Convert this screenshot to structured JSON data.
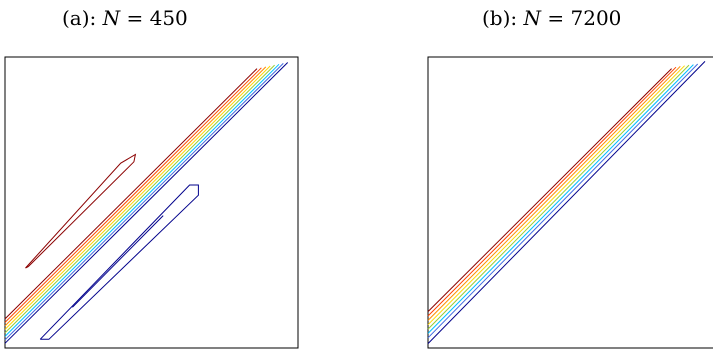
{
  "chart_data": [
    {
      "type": "contour",
      "title": {
        "prefix": "(a): ",
        "var": "N",
        "eq": " = ",
        "value": "450"
      },
      "xlim": [
        0,
        1
      ],
      "ylim": [
        0,
        1
      ],
      "grid": false,
      "contours": [
        {
          "color": "#8b0000",
          "points": [
            [
              0.0,
              0.1
            ],
            [
              0.86,
              0.96
            ]
          ]
        },
        {
          "color": "#ff4500",
          "points": [
            [
              0.0,
              0.088
            ],
            [
              0.875,
              0.963
            ]
          ]
        },
        {
          "color": "#ff8c00",
          "points": [
            [
              0.0,
              0.076
            ],
            [
              0.89,
              0.966
            ]
          ]
        },
        {
          "color": "#ffd700",
          "points": [
            [
              0.0,
              0.064
            ],
            [
              0.905,
              0.969
            ]
          ]
        },
        {
          "color": "#9acd32",
          "points": [
            [
              0.0,
              0.052
            ],
            [
              0.92,
              0.972
            ]
          ]
        },
        {
          "color": "#00bfff",
          "points": [
            [
              0.0,
              0.04
            ],
            [
              0.935,
              0.975
            ]
          ]
        },
        {
          "color": "#4169e1",
          "points": [
            [
              0.0,
              0.028
            ],
            [
              0.95,
              0.978
            ]
          ]
        },
        {
          "color": "#00008b",
          "points": [
            [
              0.0,
              0.016
            ],
            [
              0.965,
              0.981
            ]
          ]
        },
        {
          "color": "#8b0000",
          "points": [
            [
              0.08,
              0.28
            ],
            [
              0.44,
              0.64
            ],
            [
              0.445,
              0.665
            ],
            [
              0.395,
              0.635
            ],
            [
              0.07,
              0.275
            ],
            [
              0.08,
              0.28
            ]
          ]
        },
        {
          "color": "#00008b",
          "points": [
            [
              0.12,
              0.03
            ],
            [
              0.63,
              0.56
            ],
            [
              0.66,
              0.56
            ],
            [
              0.66,
              0.525
            ],
            [
              0.15,
              0.03
            ],
            [
              0.12,
              0.03
            ]
          ]
        },
        {
          "color": "#00008b",
          "points": [
            [
              0.23,
              0.14
            ],
            [
              0.54,
              0.455
            ]
          ]
        }
      ]
    },
    {
      "type": "contour",
      "title": {
        "prefix": "(b): ",
        "var": "N",
        "eq": " = ",
        "value": "7200"
      },
      "xlim": [
        0,
        1
      ],
      "ylim": [
        0,
        1
      ],
      "grid": false,
      "contours": [
        {
          "color": "#8b0000",
          "points": [
            [
              0.0,
              0.125
            ],
            [
              0.84,
              0.96
            ]
          ]
        },
        {
          "color": "#ff4500",
          "points": [
            [
              0.0,
              0.11
            ],
            [
              0.855,
              0.965
            ]
          ]
        },
        {
          "color": "#ff8c00",
          "points": [
            [
              0.0,
              0.095
            ],
            [
              0.87,
              0.968
            ]
          ]
        },
        {
          "color": "#ffd700",
          "points": [
            [
              0.0,
              0.08
            ],
            [
              0.885,
              0.97
            ]
          ]
        },
        {
          "color": "#9acd32",
          "points": [
            [
              0.0,
              0.065
            ],
            [
              0.9,
              0.972
            ]
          ]
        },
        {
          "color": "#00bfff",
          "points": [
            [
              0.0,
              0.05
            ],
            [
              0.915,
              0.974
            ]
          ]
        },
        {
          "color": "#4169e1",
          "points": [
            [
              0.0,
              0.035
            ],
            [
              0.93,
              0.976
            ]
          ]
        },
        {
          "color": "#00008b",
          "points": [
            [
              0.0,
              0.015
            ],
            [
              0.955,
              0.985
            ]
          ]
        }
      ]
    }
  ]
}
